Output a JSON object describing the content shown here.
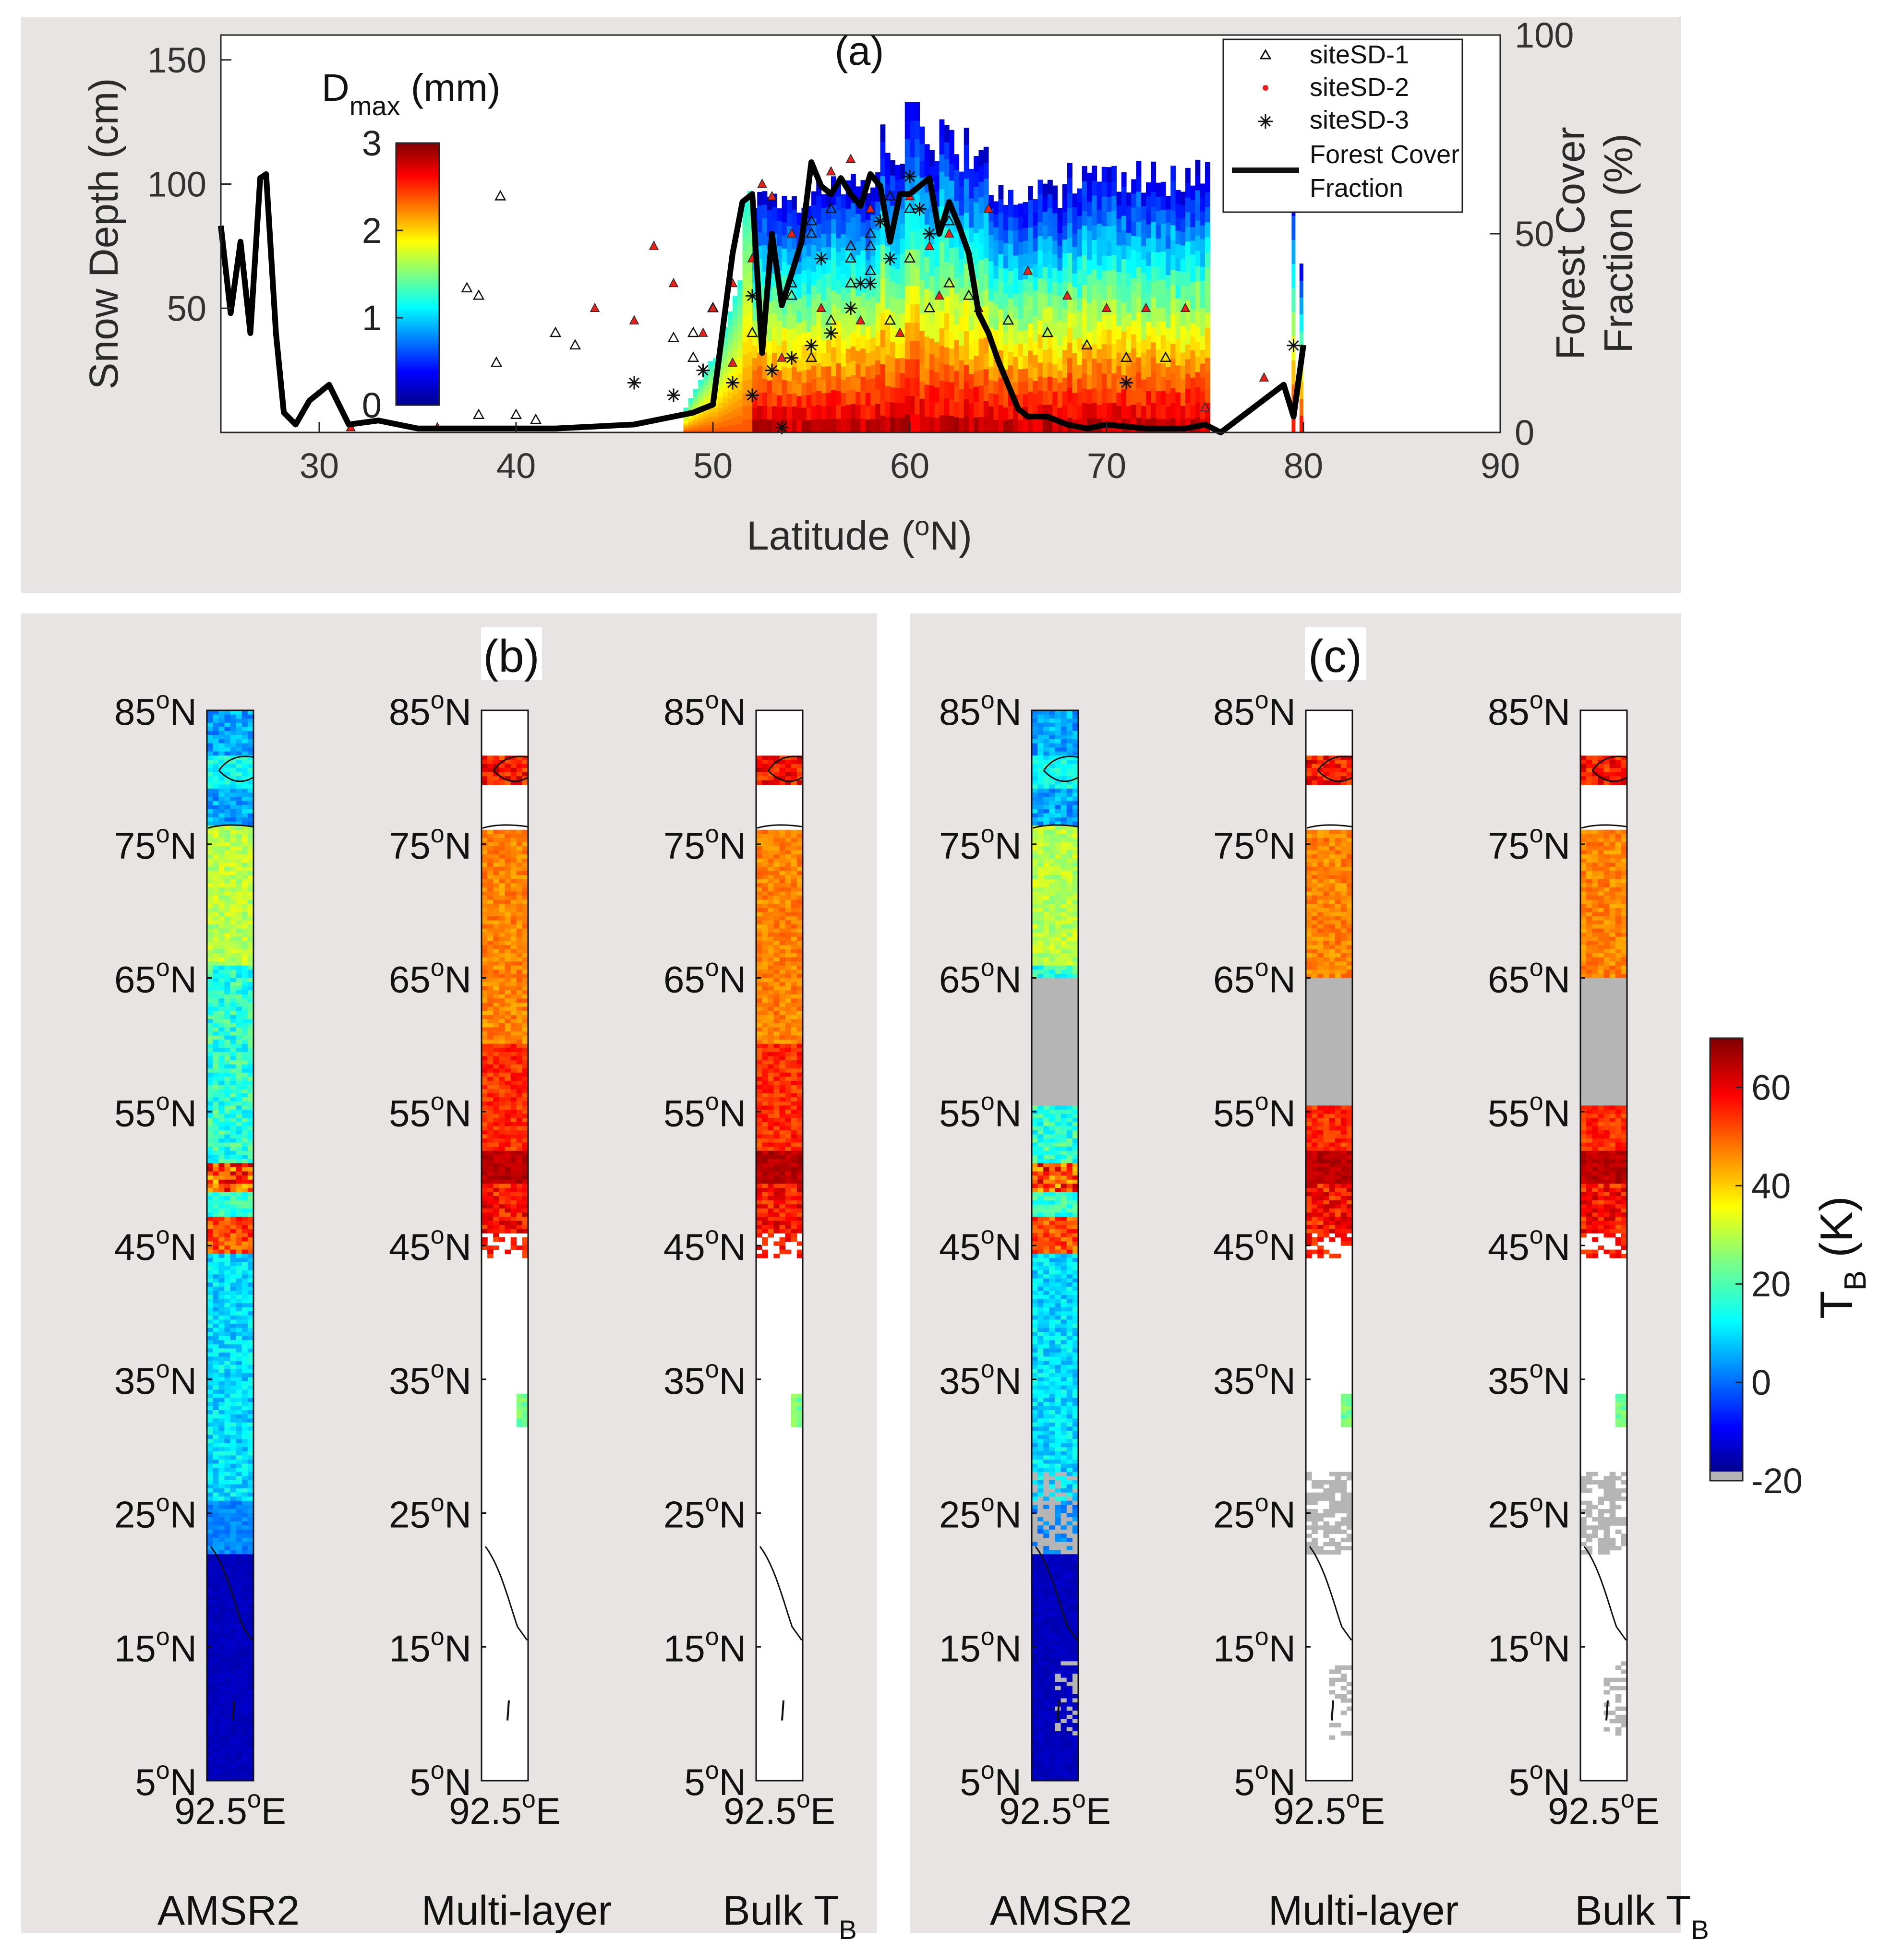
{
  "panel_a": {
    "label": "(a)",
    "ylabel": "Snow Depth (cm)",
    "y2label_line1": "Forest Cover",
    "y2label_line2": "Fraction (%)",
    "xlabel": "Latitude (°N)",
    "xticks": [
      "30",
      "40",
      "50",
      "60",
      "70",
      "80",
      "90"
    ],
    "yticks": [
      "50",
      "100",
      "150"
    ],
    "y2ticks": [
      "0",
      "50",
      "100"
    ],
    "colorbar_title": "Dmax (mm)",
    "colorbar_ticks": [
      "0",
      "1",
      "2",
      "3"
    ],
    "legend": [
      "siteSD-1",
      "siteSD-2",
      "siteSD-3",
      "Forest Cover Fraction"
    ]
  },
  "panel_b": {
    "label": "(b)"
  },
  "panel_c": {
    "label": "(c)"
  },
  "map_lat_ticks": [
    "85°N",
    "75°N",
    "65°N",
    "55°N",
    "45°N",
    "35°N",
    "25°N",
    "15°N",
    "5°N"
  ],
  "map_lon_tick": "92.5°E",
  "map_titles": [
    "AMSR2",
    "Multi-layer",
    "Bulk T_B"
  ],
  "tb_colorbar": {
    "title": "T_B (K)",
    "ticks": [
      "60",
      "40",
      "20",
      "0",
      "-20"
    ]
  },
  "colors": {
    "panel_bg": "#e7e4e3",
    "no_data": "#b5b5b5",
    "land_mask_white": "#ffffff"
  },
  "chart_data": [
    {
      "type": "scatter",
      "title": "(a)",
      "xlabel": "Latitude (°N)",
      "ylabel": "Snow Depth (cm)",
      "y2label": "Forest Cover Fraction (%)",
      "xlim": [
        25,
        90
      ],
      "ylim": [
        0,
        160
      ],
      "y2lim": [
        0,
        100
      ],
      "colorbar": {
        "title": "Dmax (mm)",
        "range": [
          0,
          3
        ]
      },
      "legend_position": "top-right",
      "series": [
        {
          "name": "siteSD-1",
          "marker": "triangle",
          "x": [
            39.2,
            37.5,
            38.1,
            39.0,
            42.0,
            43.0,
            38.1,
            40.0,
            41.0,
            48.0,
            49.0,
            50.0,
            49.0,
            53.0,
            55.0,
            56.0,
            57.0,
            58.0,
            59.0,
            54.0,
            57.0,
            60.0,
            61.0,
            62.0,
            56.0,
            58.0,
            52.0,
            55.0,
            59.0,
            63.0,
            65.0,
            67.0,
            69.0,
            71.0,
            73.0,
            55.0,
            57.0,
            60.0,
            62.0,
            58.0,
            54.0
          ],
          "y": [
            95,
            58,
            55,
            28,
            40,
            35,
            7,
            7,
            5,
            38,
            40,
            50,
            30,
            70,
            85,
            90,
            75,
            80,
            95,
            55,
            60,
            70,
            50,
            60,
            45,
            65,
            40,
            30,
            45,
            55,
            45,
            40,
            35,
            30,
            30,
            80,
            70,
            90,
            85,
            75,
            60
          ]
        },
        {
          "name": "siteSD-2",
          "marker": "dot",
          "x": [
            31.6,
            36.0,
            44.0,
            46.0,
            47.0,
            48.0,
            50.0,
            51.0,
            52.0,
            53.0,
            54.0,
            55.0,
            56.0,
            57.0,
            58.0,
            60.0,
            61.0,
            62.0,
            64.0,
            66.0,
            68.0,
            70.0,
            72.0,
            74.0,
            75.0,
            78.0,
            52.5,
            55.5,
            57.5,
            59.5,
            61.5,
            63.5,
            49.5,
            51.0,
            53.5
          ],
          "y": [
            2,
            2,
            50,
            45,
            75,
            60,
            50,
            60,
            70,
            95,
            80,
            105,
            105,
            110,
            90,
            95,
            75,
            80,
            90,
            65,
            55,
            50,
            50,
            50,
            10,
            22,
            100,
            50,
            45,
            40,
            55,
            50,
            40,
            28,
            30
          ]
        },
        {
          "name": "siteSD-3",
          "marker": "asterisk",
          "x": [
            46.0,
            48.0,
            49.5,
            51.0,
            52.0,
            53.0,
            53.5,
            54.0,
            55.0,
            56.0,
            57.0,
            57.5,
            58.0,
            59.0,
            60.0,
            61.0,
            71.0,
            79.5,
            52.0,
            55.5,
            58.5,
            60.5
          ],
          "y": [
            20,
            15,
            25,
            20,
            15,
            25,
            2,
            30,
            35,
            40,
            50,
            60,
            60,
            70,
            103,
            80,
            20,
            35,
            55,
            70,
            85,
            90
          ]
        },
        {
          "name": "Forest Cover Fraction",
          "type": "line",
          "axis": "y2",
          "x": [
            25,
            25.5,
            26,
            26.5,
            27,
            27.3,
            27.8,
            28.2,
            28.8,
            29.5,
            30.5,
            31.5,
            33,
            35,
            38,
            42,
            46,
            49,
            50,
            51,
            51.5,
            52,
            52.5,
            53,
            53.5,
            54,
            54.5,
            55,
            55.5,
            56,
            56.5,
            57,
            57.5,
            58,
            58.5,
            59,
            59.5,
            60,
            60.5,
            61,
            61.5,
            62,
            62.5,
            63,
            63.5,
            64,
            64.5,
            65,
            65.5,
            66,
            67,
            68,
            69,
            70,
            72,
            74,
            75,
            75.8,
            79,
            79.5,
            80
          ],
          "y": [
            52,
            30,
            48,
            25,
            64,
            65,
            25,
            5,
            2,
            8,
            12,
            2,
            3,
            1,
            1,
            1,
            2,
            5,
            7,
            45,
            58,
            60,
            20,
            50,
            32,
            40,
            48,
            68,
            62,
            60,
            64,
            60,
            57,
            65,
            62,
            48,
            60,
            60,
            62,
            64,
            50,
            58,
            52,
            45,
            30,
            25,
            18,
            12,
            6,
            4,
            4,
            2,
            1,
            2,
            1,
            1,
            2,
            0,
            12,
            4,
            22
          ]
        }
      ]
    },
    {
      "type": "heatmap",
      "title": "(b)",
      "panels": [
        "AMSR2",
        "Multi-layer",
        "Bulk T_B"
      ],
      "ylim_latitude": [
        5,
        85
      ],
      "longitude": "92.5°E",
      "colorbar": {
        "title": "T_B (K)",
        "range": [
          -20,
          70
        ]
      }
    },
    {
      "type": "heatmap",
      "title": "(c)",
      "panels": [
        "AMSR2",
        "Multi-layer",
        "Bulk T_B"
      ],
      "ylim_latitude": [
        5,
        85
      ],
      "longitude": "92.5°E",
      "colorbar": {
        "title": "T_B (K)",
        "range": [
          -20,
          70
        ]
      }
    }
  ]
}
